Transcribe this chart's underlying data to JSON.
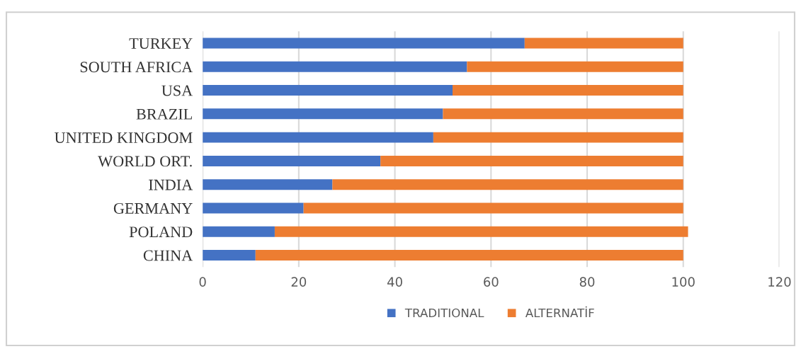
{
  "chart_data": {
    "type": "bar",
    "orientation": "horizontal",
    "stacked": true,
    "categories": [
      "TURKEY",
      "SOUTH AFRICA",
      "USA",
      "BRAZIL",
      "UNITED KINGDOM",
      "WORLD ORT.",
      "INDIA",
      "GERMANY",
      "POLAND",
      "CHINA"
    ],
    "series": [
      {
        "name": "TRADITIONAL",
        "color": "#4472c4",
        "values": [
          67,
          55,
          52,
          50,
          48,
          37,
          27,
          21,
          15,
          11
        ]
      },
      {
        "name": "ALTERNATİF",
        "color": "#ed7d31",
        "values": [
          33,
          45,
          48,
          50,
          52,
          63,
          73,
          79,
          86,
          89
        ]
      }
    ],
    "xlim": [
      0,
      120
    ],
    "xticks": [
      0,
      20,
      40,
      60,
      80,
      100,
      120
    ],
    "grid": "x",
    "legend": "bottom"
  }
}
